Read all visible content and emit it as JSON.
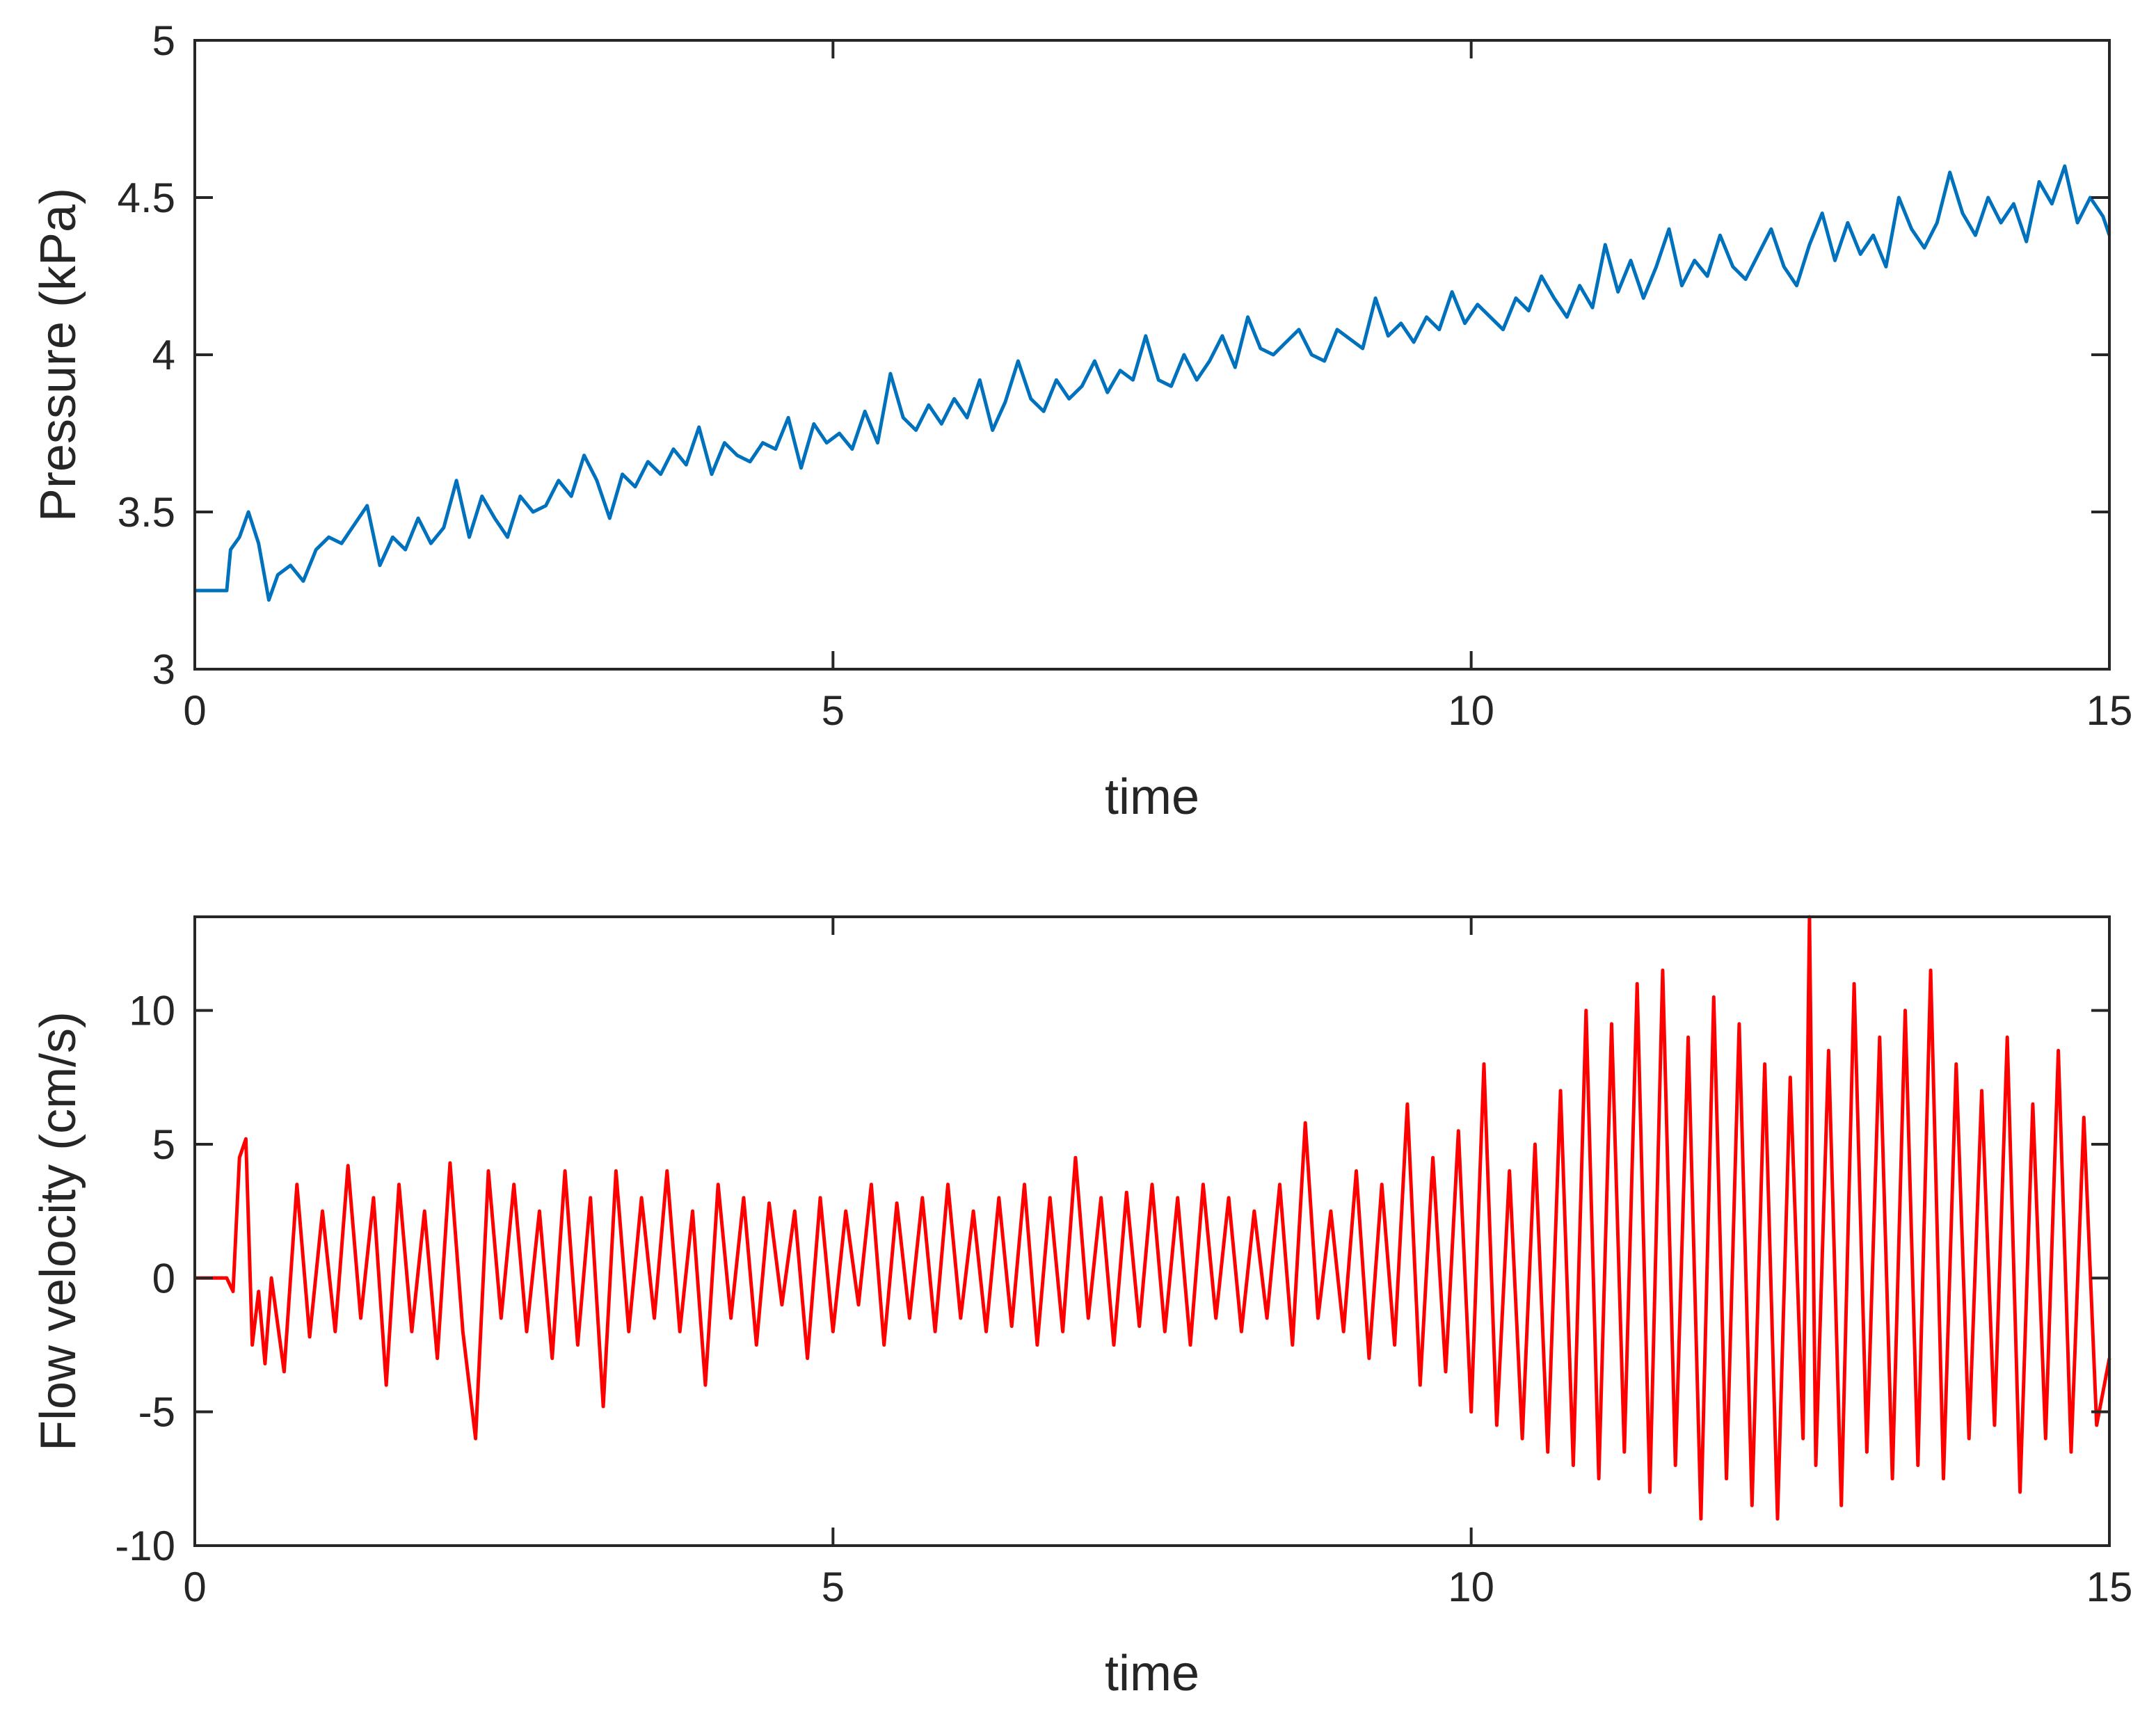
{
  "chart_data": [
    {
      "type": "line",
      "xlabel": "time",
      "ylabel": "Pressure (kPa)",
      "xlim": [
        0,
        15
      ],
      "ylim": [
        3,
        5
      ],
      "xticks": [
        0,
        5,
        10,
        15
      ],
      "xtick_labels": [
        "0",
        "5",
        "10",
        "15"
      ],
      "yticks": [
        3,
        3.5,
        4,
        4.5,
        5
      ],
      "ytick_labels": [
        "3",
        "3.5",
        "4",
        "4.5",
        "5"
      ],
      "grid": false,
      "series": [
        {
          "color": "#0072BD",
          "x": [
            0,
            0.25,
            0.28,
            0.35,
            0.42,
            0.5,
            0.58,
            0.65,
            0.75,
            0.85,
            0.95,
            1.05,
            1.15,
            1.25,
            1.35,
            1.45,
            1.55,
            1.65,
            1.75,
            1.85,
            1.95,
            2.05,
            2.15,
            2.25,
            2.35,
            2.45,
            2.55,
            2.65,
            2.75,
            2.85,
            2.95,
            3.05,
            3.15,
            3.25,
            3.35,
            3.45,
            3.55,
            3.65,
            3.75,
            3.85,
            3.95,
            4.05,
            4.15,
            4.25,
            4.35,
            4.45,
            4.55,
            4.65,
            4.75,
            4.85,
            4.95,
            5.05,
            5.15,
            5.25,
            5.35,
            5.45,
            5.55,
            5.65,
            5.75,
            5.85,
            5.95,
            6.05,
            6.15,
            6.25,
            6.35,
            6.45,
            6.55,
            6.65,
            6.75,
            6.85,
            6.95,
            7.05,
            7.15,
            7.25,
            7.35,
            7.45,
            7.55,
            7.65,
            7.75,
            7.85,
            7.95,
            8.05,
            8.15,
            8.25,
            8.35,
            8.45,
            8.55,
            8.65,
            8.75,
            8.85,
            8.95,
            9.05,
            9.15,
            9.25,
            9.35,
            9.45,
            9.55,
            9.65,
            9.75,
            9.85,
            9.95,
            10.05,
            10.15,
            10.25,
            10.35,
            10.45,
            10.55,
            10.65,
            10.75,
            10.85,
            10.95,
            11.05,
            11.15,
            11.25,
            11.35,
            11.45,
            11.55,
            11.65,
            11.75,
            11.85,
            11.95,
            12.05,
            12.15,
            12.25,
            12.35,
            12.45,
            12.55,
            12.65,
            12.75,
            12.85,
            12.95,
            13.05,
            13.15,
            13.25,
            13.35,
            13.45,
            13.55,
            13.65,
            13.75,
            13.85,
            13.95,
            14.05,
            14.15,
            14.25,
            14.35,
            14.45,
            14.55,
            14.65,
            14.75,
            14.85,
            14.95,
            15.0
          ],
          "y": [
            3.25,
            3.25,
            3.38,
            3.42,
            3.5,
            3.4,
            3.22,
            3.3,
            3.33,
            3.28,
            3.38,
            3.42,
            3.4,
            3.46,
            3.52,
            3.33,
            3.42,
            3.38,
            3.48,
            3.4,
            3.45,
            3.6,
            3.42,
            3.55,
            3.48,
            3.42,
            3.55,
            3.5,
            3.52,
            3.6,
            3.55,
            3.68,
            3.6,
            3.48,
            3.62,
            3.58,
            3.66,
            3.62,
            3.7,
            3.65,
            3.77,
            3.62,
            3.72,
            3.68,
            3.66,
            3.72,
            3.7,
            3.8,
            3.64,
            3.78,
            3.72,
            3.75,
            3.7,
            3.82,
            3.72,
            3.94,
            3.8,
            3.76,
            3.84,
            3.78,
            3.86,
            3.8,
            3.92,
            3.76,
            3.85,
            3.98,
            3.86,
            3.82,
            3.92,
            3.86,
            3.9,
            3.98,
            3.88,
            3.95,
            3.92,
            4.06,
            3.92,
            3.9,
            4.0,
            3.92,
            3.98,
            4.06,
            3.96,
            4.12,
            4.02,
            4.0,
            4.04,
            4.08,
            4.0,
            3.98,
            4.08,
            4.05,
            4.02,
            4.18,
            4.06,
            4.1,
            4.04,
            4.12,
            4.08,
            4.2,
            4.1,
            4.16,
            4.12,
            4.08,
            4.18,
            4.14,
            4.25,
            4.18,
            4.12,
            4.22,
            4.15,
            4.35,
            4.2,
            4.3,
            4.18,
            4.28,
            4.4,
            4.22,
            4.3,
            4.25,
            4.38,
            4.28,
            4.24,
            4.32,
            4.4,
            4.28,
            4.22,
            4.35,
            4.45,
            4.3,
            4.42,
            4.32,
            4.38,
            4.28,
            4.5,
            4.4,
            4.34,
            4.42,
            4.58,
            4.45,
            4.38,
            4.5,
            4.42,
            4.48,
            4.36,
            4.55,
            4.48,
            4.6,
            4.42,
            4.5,
            4.44,
            4.38
          ]
        }
      ]
    },
    {
      "type": "line",
      "xlabel": "time",
      "ylabel": "Flow velocity (cm/s)",
      "xlim": [
        0,
        15
      ],
      "ylim": [
        -10,
        13.5
      ],
      "xticks": [
        0,
        5,
        10,
        15
      ],
      "xtick_labels": [
        "0",
        "5",
        "10",
        "15"
      ],
      "yticks": [
        -10,
        -5,
        0,
        5,
        10
      ],
      "ytick_labels": [
        "-10",
        "-5",
        "0",
        "5",
        "10"
      ],
      "grid": false,
      "series": [
        {
          "color": "#FF0000",
          "x": [
            0,
            0.2,
            0.25,
            0.3,
            0.35,
            0.4,
            0.45,
            0.5,
            0.55,
            0.6,
            0.7,
            0.8,
            0.9,
            1.0,
            1.1,
            1.2,
            1.3,
            1.4,
            1.5,
            1.6,
            1.7,
            1.8,
            1.9,
            2.0,
            2.1,
            2.2,
            2.3,
            2.4,
            2.5,
            2.6,
            2.7,
            2.8,
            2.9,
            3.0,
            3.1,
            3.2,
            3.3,
            3.4,
            3.5,
            3.6,
            3.7,
            3.8,
            3.9,
            4.0,
            4.1,
            4.2,
            4.3,
            4.4,
            4.5,
            4.6,
            4.7,
            4.8,
            4.9,
            5.0,
            5.1,
            5.2,
            5.3,
            5.4,
            5.5,
            5.6,
            5.7,
            5.8,
            5.9,
            6.0,
            6.1,
            6.2,
            6.3,
            6.4,
            6.5,
            6.6,
            6.7,
            6.8,
            6.9,
            7.0,
            7.1,
            7.2,
            7.3,
            7.4,
            7.5,
            7.6,
            7.7,
            7.8,
            7.9,
            8.0,
            8.1,
            8.2,
            8.3,
            8.4,
            8.5,
            8.6,
            8.7,
            8.8,
            8.9,
            9.0,
            9.1,
            9.2,
            9.3,
            9.4,
            9.5,
            9.6,
            9.7,
            9.8,
            9.9,
            10.0,
            10.1,
            10.2,
            10.3,
            10.4,
            10.5,
            10.6,
            10.7,
            10.8,
            10.9,
            11.0,
            11.1,
            11.2,
            11.3,
            11.4,
            11.5,
            11.6,
            11.7,
            11.8,
            11.9,
            12.0,
            12.1,
            12.2,
            12.3,
            12.4,
            12.5,
            12.6,
            12.65,
            12.7,
            12.8,
            12.9,
            13.0,
            13.1,
            13.2,
            13.3,
            13.4,
            13.5,
            13.6,
            13.7,
            13.8,
            13.9,
            14.0,
            14.1,
            14.2,
            14.3,
            14.4,
            14.5,
            14.6,
            14.7,
            14.8,
            14.9,
            15.0
          ],
          "y": [
            0,
            0,
            0,
            -0.5,
            4.5,
            5.2,
            -2.5,
            -0.5,
            -3.2,
            0,
            -3.5,
            3.5,
            -2.2,
            2.5,
            -2.0,
            4.2,
            -1.5,
            3.0,
            -4.0,
            3.5,
            -2.0,
            2.5,
            -3.0,
            4.3,
            -2.0,
            -6.0,
            4.0,
            -1.5,
            3.5,
            -2.0,
            2.5,
            -3.0,
            4.0,
            -2.5,
            3.0,
            -4.8,
            4.0,
            -2.0,
            3.0,
            -1.5,
            4.0,
            -2.0,
            2.5,
            -4.0,
            3.5,
            -1.5,
            3.0,
            -2.5,
            2.8,
            -1.0,
            2.5,
            -3.0,
            3.0,
            -2.0,
            2.5,
            -1.0,
            3.5,
            -2.5,
            2.8,
            -1.5,
            3.0,
            -2.0,
            3.5,
            -1.5,
            2.5,
            -2.0,
            3.0,
            -1.8,
            3.5,
            -2.5,
            3.0,
            -2.0,
            4.5,
            -1.5,
            3.0,
            -2.5,
            3.2,
            -1.8,
            3.5,
            -2.0,
            3.0,
            -2.5,
            3.5,
            -1.5,
            3.0,
            -2.0,
            2.5,
            -1.5,
            3.5,
            -2.5,
            5.8,
            -1.5,
            2.5,
            -2.0,
            4.0,
            -3.0,
            3.5,
            -2.5,
            6.5,
            -4.0,
            4.5,
            -3.5,
            5.5,
            -5.0,
            8.0,
            -5.5,
            4.0,
            -6.0,
            5.0,
            -6.5,
            7.0,
            -7.0,
            10.0,
            -7.5,
            9.5,
            -6.5,
            11.0,
            -8.0,
            11.5,
            -7.0,
            9.0,
            -9.0,
            10.5,
            -7.5,
            9.5,
            -8.5,
            8.0,
            -9.0,
            7.5,
            -6.0,
            13.5,
            -7.0,
            8.5,
            -8.5,
            11.0,
            -6.5,
            9.0,
            -7.5,
            10.0,
            -7.0,
            11.5,
            -7.5,
            8.0,
            -6.0,
            7.0,
            -5.5,
            9.0,
            -8.0,
            6.5,
            -6.0,
            8.5,
            -6.5,
            6.0,
            -5.5,
            -3.0
          ]
        }
      ]
    }
  ]
}
